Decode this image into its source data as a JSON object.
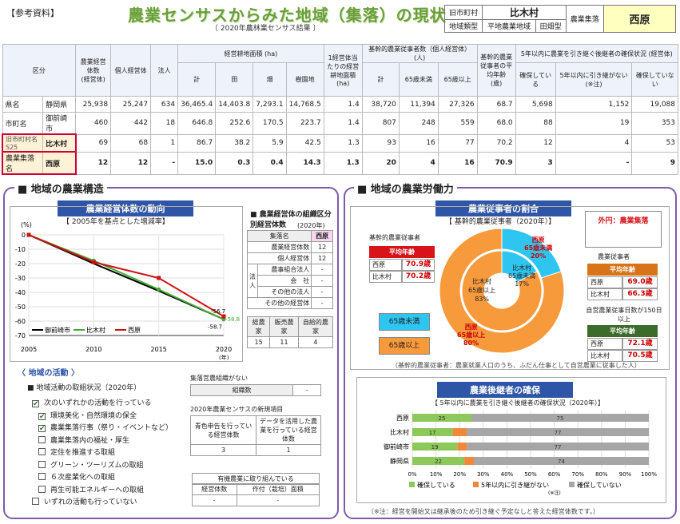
{
  "header": {
    "ref": "【参考資料】",
    "title": "農業センサスからみた地域（集落）の現状",
    "subtitle": "〔 2020年農林業センサス結果 〕"
  },
  "location": {
    "old_town_label": "旧市町村",
    "old_town_value": "比木村",
    "area_label": "農業集落",
    "area_value": "西原",
    "region_type_label": "地域類型",
    "region_type_value1": "平地農業地域",
    "region_type_value2": "田畑型"
  },
  "table": {
    "header_kubun": "区分",
    "col_total": "農業経営体数",
    "col_total_sub": "(経営体)",
    "col_individual": "個人経営体",
    "col_corp": "法人",
    "col_area_group": "経営耕地面積",
    "col_area_unit": "(ha)",
    "col_area_total": "計",
    "col_paddy": "田",
    "col_field": "畑",
    "col_orchard": "樹園地",
    "col_per": "1経営体当たりの経営耕地面積",
    "col_per_unit": "(ha)",
    "col_core_group": "基幹的農業従事者数（個人経営体）",
    "col_core_unit": "(人)",
    "col_core_total": "計",
    "col_core_u65": "65歳未満",
    "col_core_o65": "65歳以上",
    "col_avg_age": "基幹的農業従事者の平均年齢",
    "col_avg_age_unit": "(歳)",
    "col_succ_group": "5年以内に農業を引き継ぐ後継者の確保状況",
    "col_succ_unit": "(経営体)",
    "col_succ_yes": "確保している",
    "col_succ_no_5": "5年以内に引き継がない",
    "col_succ_no_5_note": "(※注)",
    "col_succ_no": "確保していない",
    "rows": [
      {
        "l1": "県名",
        "l2": "静岡県",
        "v": [
          "25,938",
          "25,247",
          "634",
          "36,465.4",
          "14,403.8",
          "7,293.1",
          "14,768.5",
          "1.4",
          "38,720",
          "11,394",
          "27,326",
          "68.7",
          "5,698",
          "1,152",
          "19,088"
        ]
      },
      {
        "l1": "市町名",
        "l2": "御前崎市",
        "v": [
          "460",
          "442",
          "18",
          "646.8",
          "252.6",
          "170.5",
          "223.7",
          "1.4",
          "807",
          "248",
          "559",
          "68.0",
          "88",
          "19",
          "353"
        ]
      },
      {
        "l1": "旧市町村名",
        "l1b": "S25",
        "l2": "比木村",
        "v": [
          "69",
          "68",
          "1",
          "86.7",
          "38.2",
          "5.9",
          "42.5",
          "1.3",
          "93",
          "16",
          "77",
          "70.2",
          "12",
          "4",
          "53"
        ]
      },
      {
        "l1": "農業集落名",
        "l2": "西原",
        "v": [
          "12",
          "12",
          "-",
          "15.0",
          "0.3",
          "0.4",
          "14.3",
          "1.3",
          "20",
          "4",
          "16",
          "70.9",
          "3",
          "-",
          "9"
        ]
      }
    ]
  },
  "left": {
    "section_title": "■ 地域の農業構造",
    "chart_title": "農業経営体数の動向",
    "chart_subtitle": "【 2005年を基点とした増減率】",
    "y_unit": "(%)",
    "x_unit": "(年)",
    "label_end_nishihara": "-56.7",
    "label_end_shi": "-58.7",
    "label_end_hiki": "-58.8",
    "org_title": "■ 農業経営体の組織区分別経営体数",
    "org_unit": "(2020年)",
    "org_header_a": "集落名",
    "org_header_b": "西原",
    "org_rows": [
      {
        "a": "農業経営体数",
        "v": "12"
      },
      {
        "a": "個人経営体",
        "v": "12"
      },
      {
        "a": "農事組合法人",
        "v": "-"
      },
      {
        "a": "会　社",
        "v": "-"
      },
      {
        "a": "その他の法人",
        "v": "-"
      },
      {
        "a": "その他の経営体",
        "v": "-"
      }
    ],
    "org_houjin": "法人",
    "sales_headers": [
      "総農家",
      "販売農家",
      "自給的農家"
    ],
    "sales_values": [
      "15",
      "11",
      "4"
    ],
    "activity_title": "〈 地域の活動 〉",
    "activity_sub": "■ 地域活動の取組状況（2020年）",
    "activities": [
      {
        "t": "次のいずれかの活動を行っている",
        "c": "✔",
        "ind": 0
      },
      {
        "t": "環境美化・自然環境の保全",
        "c": "✔",
        "ind": 1
      },
      {
        "t": "農業集落行事（祭り・イベントなど）",
        "c": "✔",
        "ind": 1
      },
      {
        "t": "農業集落内の福祉・厚生",
        "c": "",
        "ind": 1
      },
      {
        "t": "定住を推進する取組",
        "c": "",
        "ind": 1
      },
      {
        "t": "グリーン・ツーリズムの取組",
        "c": "",
        "ind": 1
      },
      {
        "t": "６次産業化への取組",
        "c": "",
        "ind": 1
      },
      {
        "t": "再生可能エネルギーへの取組",
        "c": "",
        "ind": 1
      },
      {
        "t": "いずれの活動も行っていない",
        "c": "",
        "ind": 0
      }
    ],
    "org_group_title": "集落営農組織がない",
    "org_group_label": "組織数",
    "org_group_value": "-",
    "new_item_title": "2020年農業センサスの新規項目",
    "new_h1": "青色申告を行っている経営体数",
    "new_h2": "データを活用した農業を行っている経営体数",
    "new_v1": "3",
    "new_v2": "1",
    "organic_title": "有機農業に取り組んでいる",
    "organic_h1": "経営体数",
    "organic_h2": "作付（栽培）面積",
    "organic_v1": "-",
    "organic_v2": "-"
  },
  "right": {
    "section_title": "■ 地域の農業労働力",
    "pie_title": "農業従事者の割合",
    "pie_subtitle": "【 基幹的農業従事者（2020年）】",
    "core_label": "基幹的農業従事者",
    "avg_age_title": "平均年齢",
    "age_rows": [
      {
        "n": "西原",
        "v": "70.9歳"
      },
      {
        "n": "比木村",
        "v": "70.2歳"
      }
    ],
    "outer_legend_title": "外円：農業集落",
    "right_core_label": "農業従事者",
    "right_age_title": "平均年齢",
    "right_age_rows": [
      {
        "n": "西原",
        "v": "69.0歳"
      },
      {
        "n": "比木村",
        "v": "66.3歳"
      }
    ],
    "self_emp_label": "自営農業従事日数が150日以上",
    "self_age_title": "平均年齢",
    "self_age_rows": [
      {
        "n": "西原",
        "v": "72.1歳"
      },
      {
        "n": "比木村",
        "v": "70.5歳"
      }
    ],
    "legend_u65": "65歳未満",
    "legend_o65": "65歳以上",
    "outer_u65_label": "西原\n65歳未満\n20%",
    "outer_o65_label": "西原\n65歳以上\n80%",
    "inner_u65_label": "比木村\n65歳未満\n17%",
    "inner_o65_label": "比木村\n65歳以上\n83%",
    "pie_note": "（基幹的農業従事者：農業就業人口のうち、ふだん仕事として自営農業に従事した人）",
    "bar_title": "農業後継者の確保",
    "bar_subtitle": "【 5年以内に農業を引き継ぐ後継者の確保状況（2020年）】",
    "bar_legend": [
      "確保している",
      "5年以内に引き継がない",
      "確保していない"
    ],
    "bar_legend_note": "(※注)",
    "bar_note": "〔※注：経営を開始又は継承後のため引き継ぐ予定なしと答えた経営体数です。〕",
    "colors": {
      "green": "#8cc85a",
      "orange": "#f0883a",
      "gray": "#a6a6a6",
      "cyan": "#2ec5f0",
      "pie_orange": "#f79a3c"
    }
  },
  "chart_data": [
    {
      "type": "line",
      "title": "農業経営体数の動向",
      "x": [
        2005,
        2010,
        2015,
        2020
      ],
      "ylim": [
        -70,
        0
      ],
      "series": [
        {
          "name": "御前崎市",
          "values": [
            0,
            -20,
            -39,
            -58.7
          ]
        },
        {
          "name": "比木村",
          "values": [
            0,
            -18,
            -38,
            -58.8
          ]
        },
        {
          "name": "西原",
          "values": [
            0,
            -19,
            -30,
            -56.7
          ]
        }
      ],
      "colors": [
        "#000000",
        "#44aa33",
        "#cc1111"
      ],
      "legend": "bottom-left",
      "grid": true
    },
    {
      "type": "pie",
      "title": "農業従事者の割合",
      "outer": {
        "name": "西原",
        "values": [
          20,
          80
        ]
      },
      "inner": {
        "name": "比木村",
        "values": [
          17,
          83
        ]
      },
      "categories": [
        "65歳未満",
        "65歳以上"
      ]
    },
    {
      "type": "bar",
      "title": "農業後継者の確保",
      "categories": [
        "西原",
        "比木村",
        "御前崎市",
        "静岡県"
      ],
      "series": [
        {
          "name": "確保している",
          "values": [
            25,
            17,
            19,
            22
          ]
        },
        {
          "name": "5年以内に引き継がない",
          "values": [
            0,
            6,
            4,
            4
          ]
        },
        {
          "name": "確保していない",
          "values": [
            75,
            77,
            77,
            74
          ]
        }
      ],
      "labels": [
        [
          "25",
          "",
          "75"
        ],
        [
          "17",
          "",
          "77"
        ],
        [
          "19",
          "",
          "77"
        ],
        [
          "22",
          "",
          "74"
        ]
      ],
      "xlim": [
        0,
        100
      ],
      "xticks": [
        "0%",
        "10%",
        "20%",
        "30%",
        "40%",
        "50%",
        "60%",
        "70%",
        "80%",
        "90%",
        "100%"
      ]
    }
  ]
}
